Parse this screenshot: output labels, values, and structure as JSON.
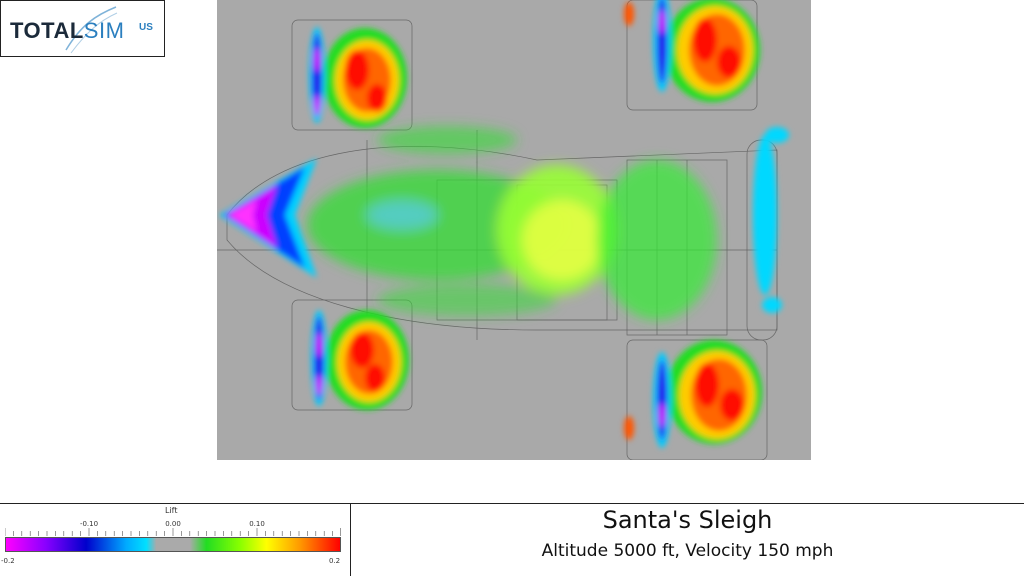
{
  "logo": {
    "total": "TOTAL",
    "sim": "SIM",
    "us": "US"
  },
  "legend": {
    "title": "Lift",
    "ticks": [
      "-0.10",
      "0.00",
      "0.10"
    ],
    "min_label": "-0.2",
    "max_label": "0.2",
    "colors": [
      "#ff00ff",
      "#0000cc",
      "#00e0ff",
      "#aaaaaa",
      "#22dd22",
      "#ffff00",
      "#ff0000"
    ]
  },
  "caption": {
    "title": "Santa's Sleigh",
    "subtitle": "Altitude 5000 ft, Velocity 150 mph"
  }
}
